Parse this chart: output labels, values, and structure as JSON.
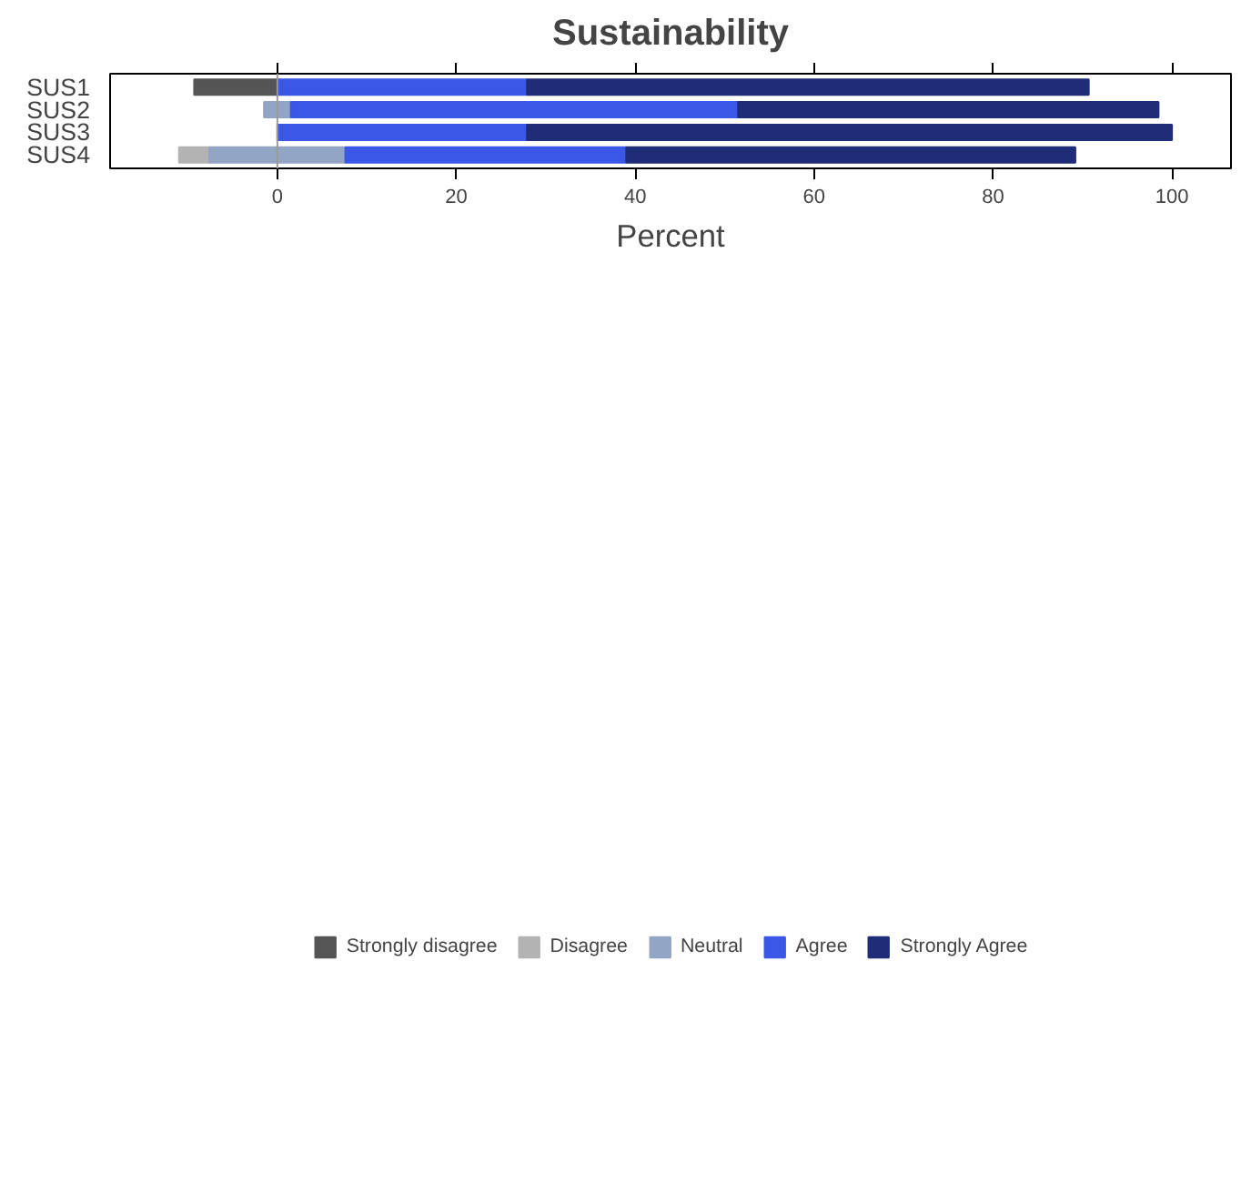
{
  "chart_data": {
    "type": "bar",
    "title": "Sustainability",
    "xlabel": "Percent",
    "orientation": "horizontal",
    "categories": [
      "SUS1",
      "SUS2",
      "SUS3",
      "SUS4"
    ],
    "series": [
      {
        "name": "Strongly disagree",
        "color": "#555555",
        "base": [
          -9.3,
          null,
          null,
          null
        ],
        "values": [
          9.3,
          null,
          null,
          null
        ]
      },
      {
        "name": "Disagree",
        "color": "#b3b3b3",
        "base": [
          null,
          null,
          null,
          -11.0
        ],
        "values": [
          null,
          null,
          null,
          3.4
        ]
      },
      {
        "name": "Neutral",
        "color": "#93a5c4",
        "base": [
          null,
          -1.5,
          null,
          -7.6
        ],
        "values": [
          null,
          3.0,
          null,
          15.2
        ]
      },
      {
        "name": "Agree",
        "color": "#3a57e8",
        "base": [
          0,
          1.5,
          0,
          7.6
        ],
        "values": [
          27.9,
          50.0,
          27.9,
          31.4
        ]
      },
      {
        "name": "Strongly Agree",
        "color": "#1f2d78",
        "base": [
          27.9,
          51.5,
          27.9,
          39.0
        ],
        "values": [
          62.8,
          47.0,
          72.1,
          50.2
        ]
      }
    ],
    "xlim": [
      -18.7,
      106.6
    ],
    "xticks": [
      0,
      20,
      40,
      60,
      80,
      100
    ],
    "ref_lines": [
      {
        "axis": "x",
        "value": 0,
        "color": "#999999"
      }
    ],
    "grid": false,
    "legend": "bottom"
  }
}
